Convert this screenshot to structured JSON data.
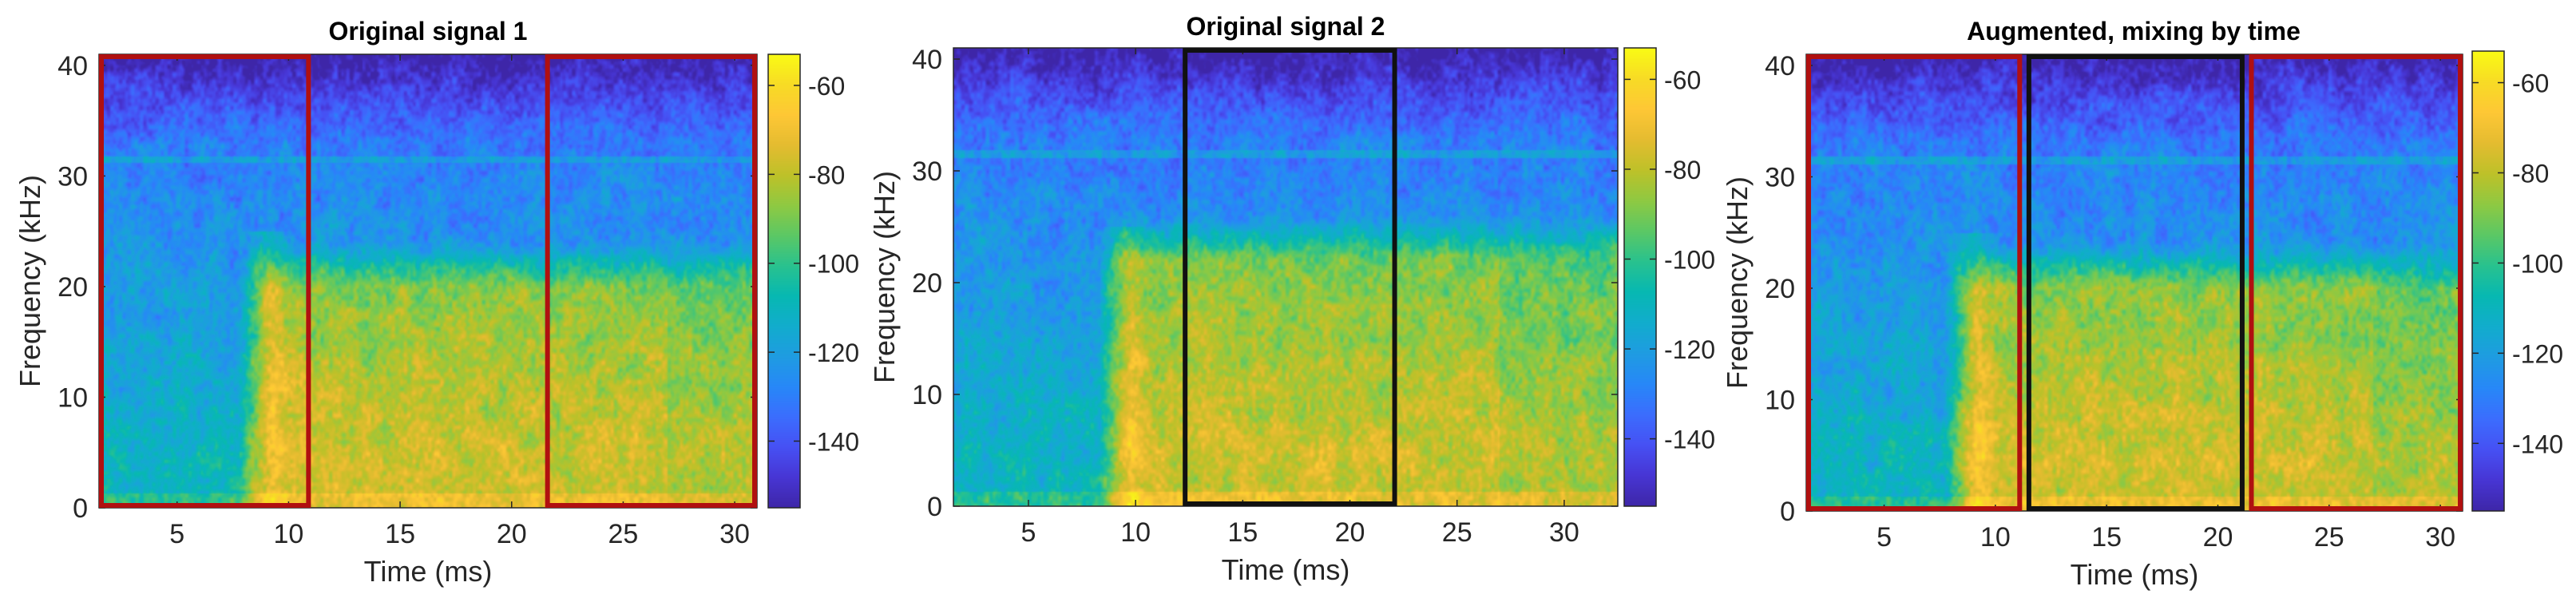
{
  "chart_data": [
    {
      "type": "heatmap",
      "title": "Original signal 1",
      "xlabel": "Time (ms)",
      "ylabel": "Frequency (kHz)",
      "xlim": [
        1.5,
        31
      ],
      "ylim": [
        0,
        41
      ],
      "xticks": [
        5,
        10,
        15,
        20,
        25,
        30
      ],
      "xtick_labels": [
        "5",
        "10",
        "15",
        "20",
        "25",
        "30"
      ],
      "yticks": [
        0,
        10,
        20,
        30,
        40
      ],
      "ytick_labels": [
        "0",
        "10",
        "20",
        "30",
        "40"
      ],
      "colorbar": {
        "range": [
          -155,
          -53
        ],
        "ticks": [
          -60,
          -80,
          -100,
          -120,
          -140
        ],
        "tick_labels": [
          "-60",
          "-80",
          "-100",
          "-120",
          "-140"
        ],
        "colormap": "parula"
      },
      "highlight_boxes": [
        {
          "x": [
            1.5,
            11
          ],
          "y": [
            0,
            41
          ],
          "color": "#b01010"
        },
        {
          "x": [
            21.5,
            31
          ],
          "y": [
            0,
            41
          ],
          "color": "#b01010"
        }
      ],
      "signal": {
        "onset_ms": 9,
        "peak_band_khz": [
          5,
          20
        ],
        "seed": 11
      }
    },
    {
      "type": "heatmap",
      "title": "Original signal 2",
      "xlabel": "Time (ms)",
      "ylabel": "Frequency (kHz)",
      "xlim": [
        1.5,
        32.5
      ],
      "ylim": [
        0,
        41
      ],
      "xticks": [
        5,
        10,
        15,
        20,
        25,
        30
      ],
      "xtick_labels": [
        "5",
        "10",
        "15",
        "20",
        "25",
        "30"
      ],
      "yticks": [
        0,
        10,
        20,
        30,
        40
      ],
      "ytick_labels": [
        "0",
        "10",
        "20",
        "30",
        "40"
      ],
      "colorbar": {
        "range": [
          -155,
          -53
        ],
        "ticks": [
          -60,
          -80,
          -100,
          -120,
          -140
        ],
        "tick_labels": [
          "-60",
          "-80",
          "-100",
          "-120",
          "-140"
        ],
        "colormap": "parula"
      },
      "highlight_boxes": [
        {
          "x": [
            12.2,
            22.2
          ],
          "y": [
            0,
            41
          ],
          "color": "#111111"
        }
      ],
      "signal": {
        "onset_ms": 9.5,
        "peak_band_khz": [
          5,
          22
        ],
        "seed": 23
      }
    },
    {
      "type": "heatmap",
      "title": "Augmented, mixing by time",
      "xlabel": "Time (ms)",
      "ylabel": "Frequency (kHz)",
      "xlim": [
        1.5,
        31
      ],
      "ylim": [
        0,
        41
      ],
      "xticks": [
        5,
        10,
        15,
        20,
        25,
        30
      ],
      "xtick_labels": [
        "5",
        "10",
        "15",
        "20",
        "25",
        "30"
      ],
      "yticks": [
        0,
        10,
        20,
        30,
        40
      ],
      "ytick_labels": [
        "0",
        "10",
        "20",
        "30",
        "40"
      ],
      "colorbar": {
        "range": [
          -155,
          -53
        ],
        "ticks": [
          -60,
          -80,
          -100,
          -120,
          -140
        ],
        "tick_labels": [
          "-60",
          "-80",
          "-100",
          "-120",
          "-140"
        ],
        "colormap": "parula"
      },
      "highlight_boxes": [
        {
          "x": [
            1.5,
            11.2
          ],
          "y": [
            0,
            41
          ],
          "color": "#b01010"
        },
        {
          "x": [
            11.4,
            21.2
          ],
          "y": [
            0,
            41
          ],
          "color": "#111111"
        },
        {
          "x": [
            21.4,
            31
          ],
          "y": [
            0,
            41
          ],
          "color": "#b01010"
        }
      ],
      "signal": {
        "onset_ms": 9,
        "peak_band_khz": [
          5,
          20
        ],
        "seed": 37
      }
    }
  ]
}
